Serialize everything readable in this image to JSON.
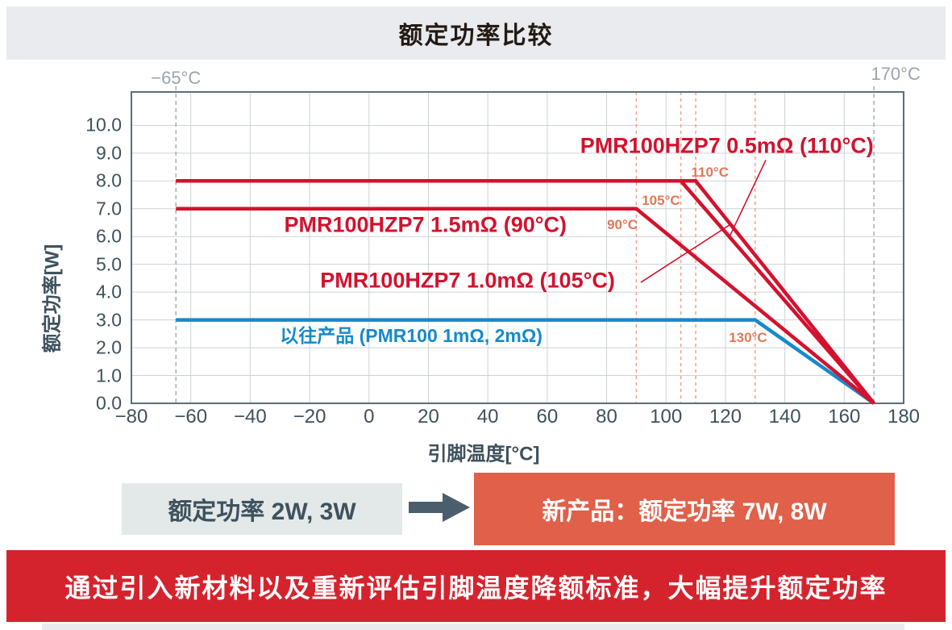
{
  "header": {
    "title": "额定功率比较"
  },
  "chart_data": {
    "type": "line",
    "title": "额定功率比较",
    "xlabel": "引脚温度[°C]",
    "ylabel": "额定功率[W]",
    "xlim": [
      -80,
      180
    ],
    "ylim": [
      0,
      11.2
    ],
    "xticks": [
      -80,
      -60,
      -40,
      -20,
      0,
      20,
      40,
      60,
      80,
      100,
      120,
      140,
      160,
      180
    ],
    "ytick_labels": [
      "0.0",
      "1.0",
      "2.0",
      "3.0",
      "4.0",
      "5.0",
      "6.0",
      "7.0",
      "8.0",
      "9.0",
      "10.0"
    ],
    "grid": true,
    "legend_position": "inline-labels",
    "series": [
      {
        "name": "PMR100HZP7 0.5mΩ (110°C)",
        "color": "#d3122e",
        "rated_power_w": 8,
        "points": [
          [
            -65,
            8
          ],
          [
            110,
            8
          ],
          [
            170,
            0
          ]
        ]
      },
      {
        "name": "PMR100HZP7 1.0mΩ (105°C)",
        "color": "#d3122e",
        "rated_power_w": 8,
        "points": [
          [
            -65,
            8
          ],
          [
            105,
            8
          ],
          [
            170,
            0
          ]
        ]
      },
      {
        "name": "PMR100HZP7 1.5mΩ (90°C)",
        "color": "#d3122e",
        "rated_power_w": 7,
        "points": [
          [
            -65,
            7
          ],
          [
            90,
            7
          ],
          [
            170,
            0
          ]
        ]
      },
      {
        "name": "以往产品 (PMR100 1mΩ, 2mΩ)",
        "color": "#1689cd",
        "rated_power_w": 3,
        "points": [
          [
            -65,
            3
          ],
          [
            130,
            3
          ],
          [
            170,
            0
          ]
        ]
      }
    ],
    "temp_range_markers": [
      {
        "label": "-65°C",
        "x": -65
      },
      {
        "label": "170°C",
        "x": 170
      }
    ],
    "derating_markers": [
      {
        "label": "90°C",
        "x": 90
      },
      {
        "label": "105°C",
        "x": 105
      },
      {
        "label": "110°C",
        "x": 110
      },
      {
        "label": "130°C",
        "x": 130
      }
    ]
  },
  "comparison": {
    "old_label": "额定功率 2W, 3W",
    "new_label": "新产品：额定功率 7W, 8W"
  },
  "banner": {
    "text": "通过引入新材料以及重新评估引脚温度降额标准，大幅提升额定功率"
  },
  "palette": {
    "new_product_red": "#d3122e",
    "previous_product_blue": "#1689cd",
    "derating_marker_orange": "#e0785a",
    "range_marker_gray": "#9ba4ab",
    "highlight_box_red": "#e06049",
    "banner_red": "#d5232e"
  }
}
